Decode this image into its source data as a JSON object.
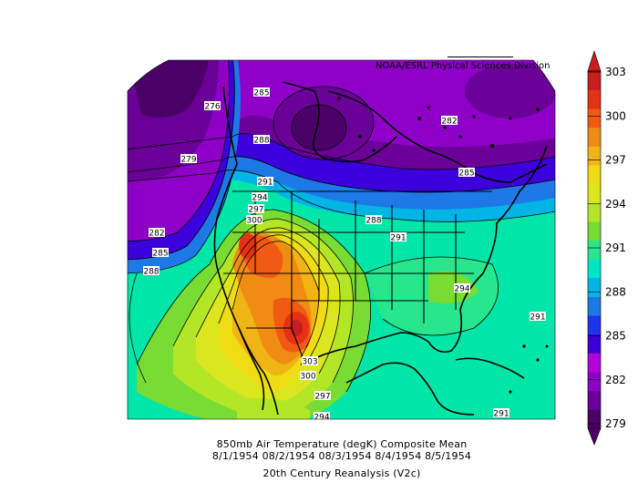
{
  "header": {
    "credit": "NOAA/ESRL Physical Sciences Division"
  },
  "caption": {
    "line1": "850mb Air Temperature (degK) Composite Mean",
    "line2": "8/1/1954 08/2/1954 08/3/1954 8/4/1954 8/5/1954",
    "line3": "20th Century Reanalysis (V2c)"
  },
  "colorbar": {
    "ticks": [
      "303",
      "300",
      "297",
      "294",
      "291",
      "288",
      "285",
      "282",
      "279"
    ],
    "colors": [
      "#4b0068",
      "#6a0098",
      "#8e00c8",
      "#b400dc",
      "#3c00dc",
      "#1e32f0",
      "#1e78e6",
      "#00b4e6",
      "#00e6c8",
      "#28e68c",
      "#78dc32",
      "#b4e628",
      "#dce61e",
      "#f0dc14",
      "#f0b414",
      "#f08c14",
      "#f05a14",
      "#e63214",
      "#c81e1e"
    ]
  },
  "map_labels": [
    "276",
    "285",
    "282",
    "288",
    "279",
    "291",
    "285",
    "294",
    "297",
    "300",
    "288",
    "291",
    "282",
    "285",
    "288",
    "294",
    "291",
    "303",
    "300",
    "297",
    "294",
    "291"
  ]
}
